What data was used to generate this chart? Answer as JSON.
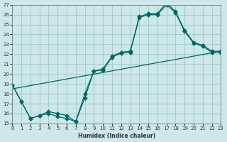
{
  "xlabel": "Humidex (Indice chaleur)",
  "bg_color": "#cce8e8",
  "grid_color": "#aacccc",
  "line_color": "#006666",
  "xlim": [
    0,
    23
  ],
  "ylim": [
    15,
    27
  ],
  "xticks": [
    0,
    1,
    2,
    3,
    4,
    5,
    6,
    7,
    8,
    9,
    10,
    11,
    12,
    13,
    14,
    15,
    16,
    17,
    18,
    19,
    20,
    21,
    22,
    23
  ],
  "yticks": [
    15,
    16,
    17,
    18,
    19,
    20,
    21,
    22,
    23,
    24,
    25,
    26,
    27
  ],
  "line1_x": [
    0,
    1,
    2,
    3,
    4,
    5,
    6,
    7,
    8,
    9,
    10,
    11,
    12,
    13,
    14,
    15,
    16,
    17,
    18,
    19,
    20,
    21,
    22,
    23
  ],
  "line1_y": [
    18.9,
    17.2,
    15.5,
    15.8,
    16.2,
    16.0,
    15.8,
    15.2,
    17.6,
    20.3,
    20.5,
    21.8,
    22.2,
    22.3,
    25.8,
    26.1,
    26.1,
    27.2,
    26.3,
    24.4,
    23.2,
    22.9,
    22.3,
    22.3
  ],
  "line2_x": [
    0,
    1,
    2,
    3,
    4,
    5,
    6,
    7,
    8,
    9,
    10,
    11,
    12,
    13,
    14,
    15,
    16,
    17,
    18,
    19,
    20,
    21,
    22,
    23
  ],
  "line2_y": [
    18.9,
    17.2,
    15.5,
    15.8,
    16.0,
    15.7,
    15.5,
    15.2,
    18.0,
    20.3,
    20.4,
    21.7,
    22.1,
    22.2,
    25.7,
    26.0,
    26.0,
    27.0,
    26.2,
    24.3,
    23.1,
    22.8,
    22.2,
    22.2
  ],
  "line3_x": [
    0,
    23
  ],
  "line3_y": [
    18.5,
    22.3
  ]
}
